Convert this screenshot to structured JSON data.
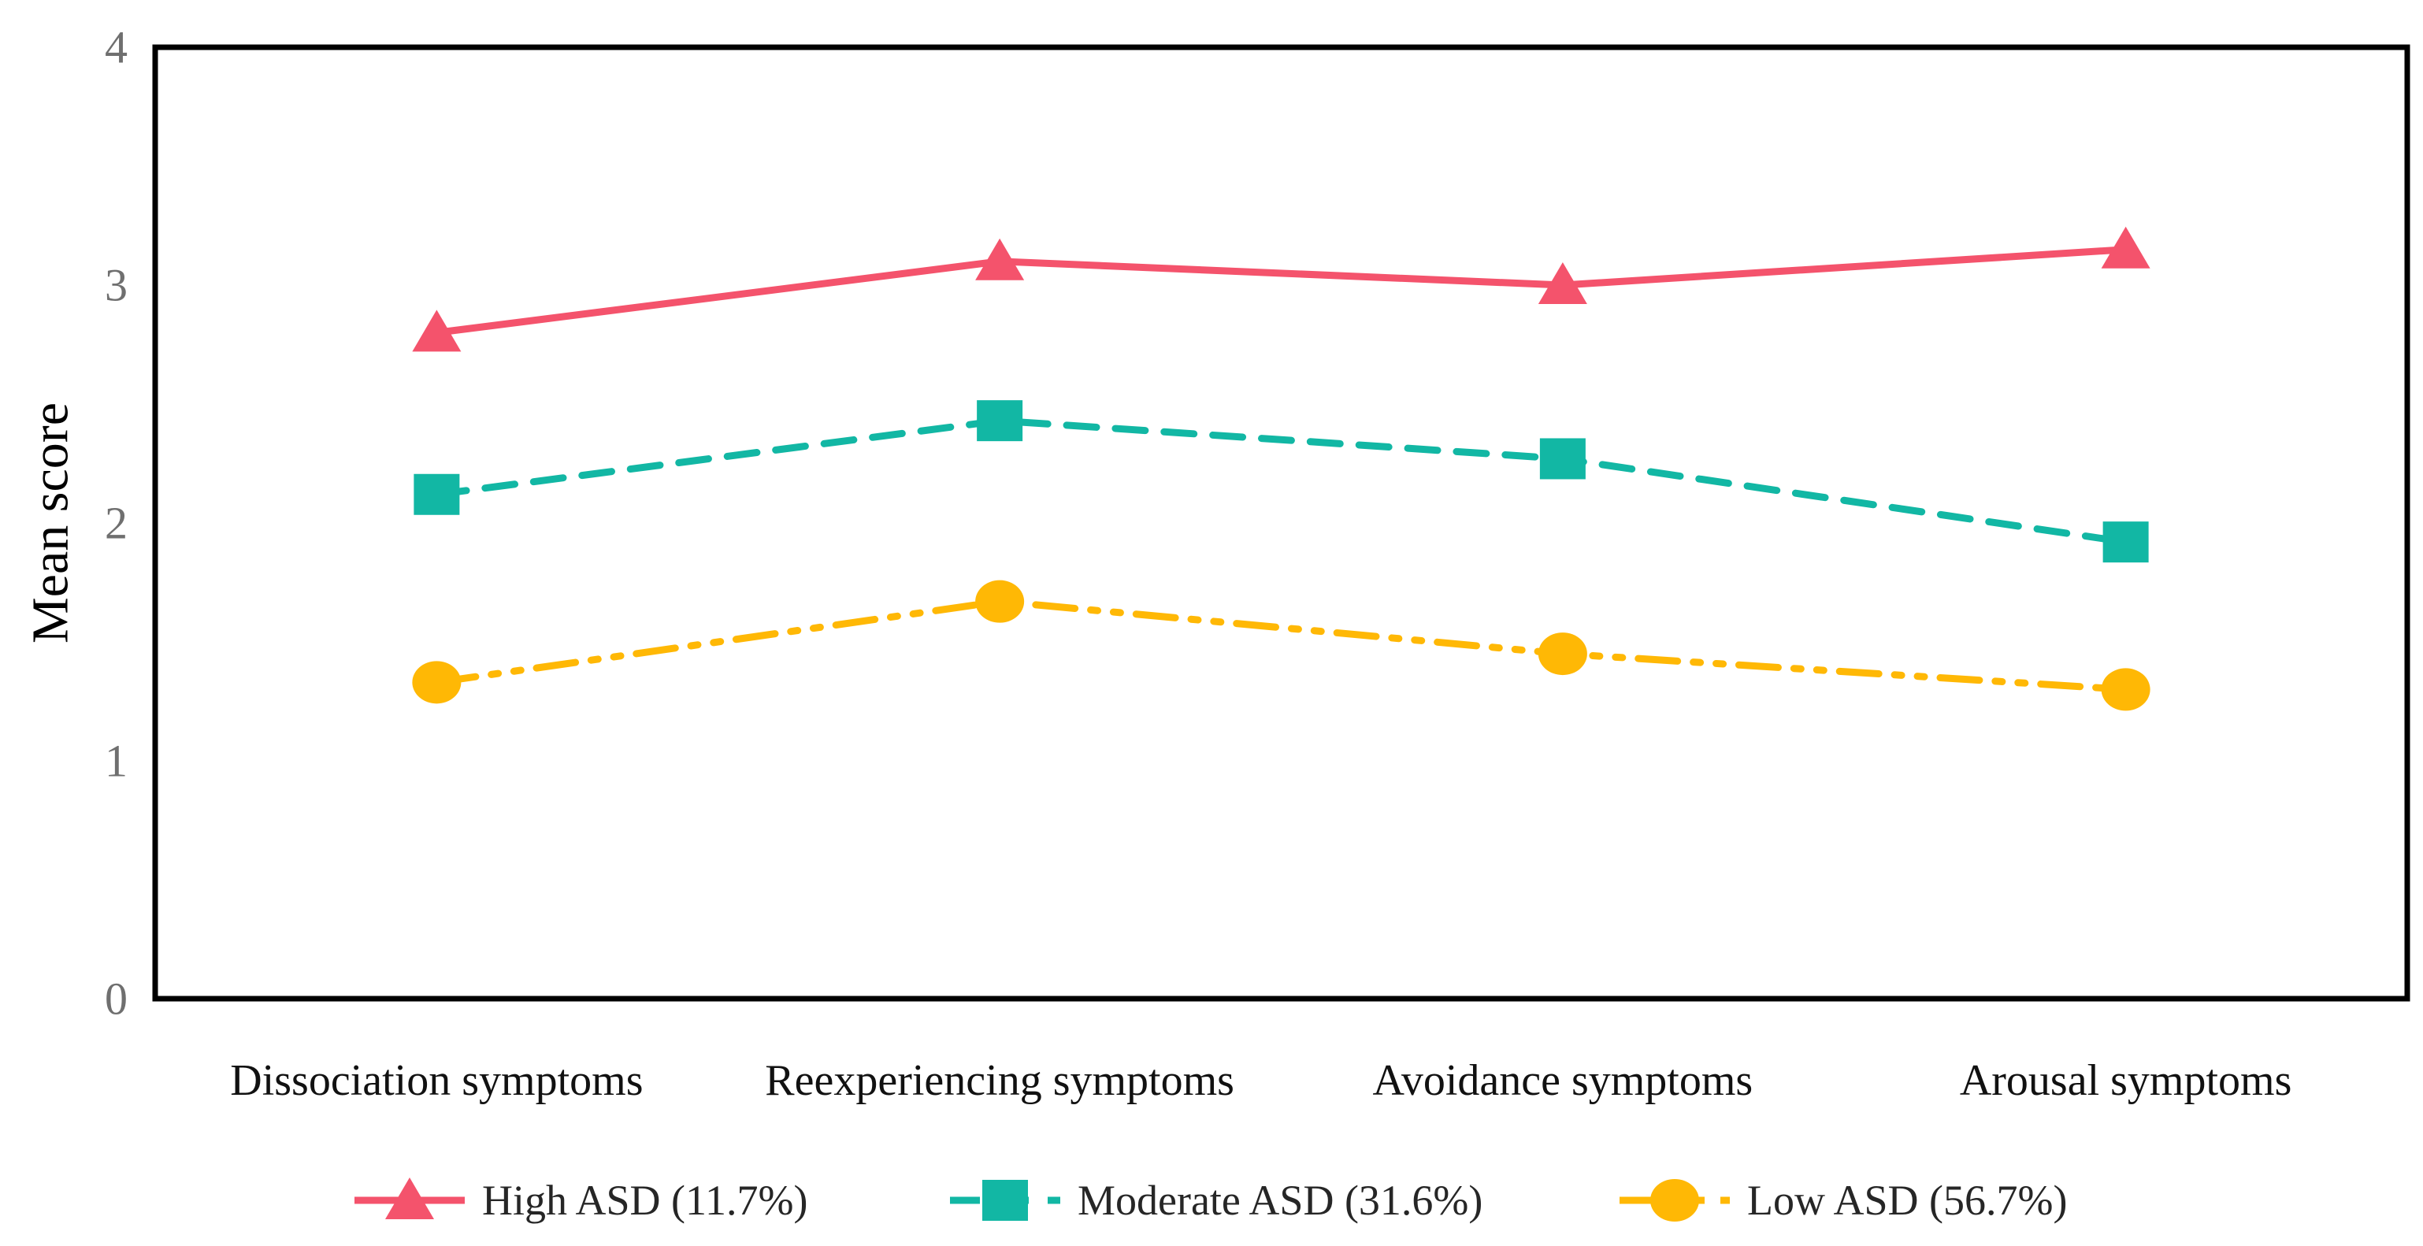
{
  "chart_data": {
    "type": "line",
    "title": "",
    "xlabel": "",
    "ylabel": "Mean score",
    "ylim": [
      0,
      4
    ],
    "yticks": [
      0,
      1,
      2,
      3,
      4
    ],
    "grid": false,
    "legend_position": "bottom",
    "categories": [
      "Dissociation symptoms",
      "Reexperiencing symptoms",
      "Avoidance symptoms",
      "Arousal symptoms"
    ],
    "series": [
      {
        "name": "High ASD (11.7%)",
        "values": [
          2.8,
          3.1,
          3.0,
          3.15
        ],
        "color": "#F4536C",
        "marker": "triangle",
        "line_style": "solid"
      },
      {
        "name": "Moderate ASD (31.6%)",
        "values": [
          2.12,
          2.43,
          2.27,
          1.92
        ],
        "color": "#12B7A4",
        "marker": "square",
        "line_style": "dashed"
      },
      {
        "name": "Low ASD (56.7%)",
        "values": [
          1.33,
          1.67,
          1.45,
          1.3
        ],
        "color": "#FFB805",
        "marker": "circle",
        "line_style": "dash-dot-dot"
      }
    ],
    "colors": {
      "axis_frame": "#000000",
      "tick_label": "#6F6F6F",
      "category_label": "#111111",
      "legend_text": "#262626",
      "background": "#FFFFFF"
    }
  }
}
